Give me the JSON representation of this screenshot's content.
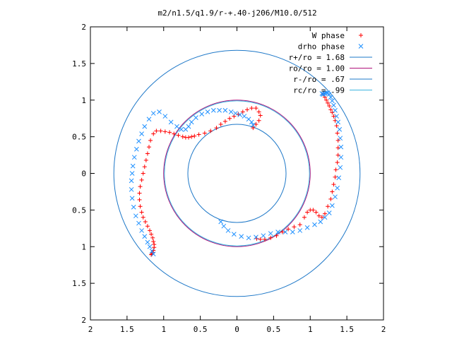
{
  "chart_data": {
    "type": "scatter",
    "title": "m2/n1.5/q1.9/r-+.40-j206/M10.0/512",
    "xlim": [
      -2,
      2
    ],
    "ylim": [
      -2,
      2
    ],
    "xticks": [
      -2,
      -1.5,
      -1,
      -0.5,
      0,
      0.5,
      1,
      1.5,
      2
    ],
    "yticks": [
      -2,
      -1.5,
      -1,
      -0.5,
      0,
      0.5,
      1,
      1.5,
      2
    ],
    "xtick_labels": [
      "2",
      "1.5",
      "1",
      "0.5",
      "0",
      "0.5",
      "1",
      "1.5",
      "2"
    ],
    "ytick_labels": [
      "2",
      "1.5",
      "1",
      "0.5",
      "0",
      "0.5",
      "1",
      "1.5",
      "2"
    ],
    "grid": false,
    "legend_position": "top-right",
    "series": [
      {
        "name": "W phase",
        "kind": "points",
        "marker": "plus",
        "color": "#ff0000",
        "x": [
          0.22,
          0.26,
          0.3,
          0.32,
          0.3,
          0.26,
          0.2,
          0.14,
          0.08,
          0.02,
          -0.04,
          -0.1,
          -0.16,
          -0.22,
          -0.28,
          -0.36,
          -0.44,
          -0.52,
          -0.58,
          -0.62,
          -0.66,
          -0.7,
          -0.74,
          -0.8,
          -0.86,
          -0.92,
          -0.98,
          -1.04,
          -1.1,
          -1.14,
          -1.18,
          -1.2,
          -1.22,
          -1.24,
          -1.26,
          -1.28,
          -1.3,
          -1.32,
          -1.33,
          -1.33,
          -1.32,
          -1.3,
          -1.28,
          -1.25,
          -1.22,
          -1.19,
          -1.17,
          -1.15,
          -1.14,
          -1.13,
          -1.13,
          -1.14,
          -1.15,
          -1.16,
          -1.17,
          0.27,
          0.32,
          0.38,
          0.46,
          0.54,
          0.62,
          0.7,
          0.78,
          0.86,
          0.92,
          0.96,
          1.0,
          1.04,
          1.08,
          1.12,
          1.16,
          1.2,
          1.24,
          1.28,
          1.3,
          1.32,
          1.34,
          1.35,
          1.37,
          1.38,
          1.38,
          1.38,
          1.37,
          1.36,
          1.34,
          1.32,
          1.3,
          1.28,
          1.26,
          1.24,
          1.22,
          1.2,
          1.18
        ],
        "y": [
          0.62,
          0.67,
          0.72,
          0.79,
          0.84,
          0.89,
          0.89,
          0.87,
          0.84,
          0.81,
          0.78,
          0.75,
          0.71,
          0.67,
          0.62,
          0.58,
          0.55,
          0.53,
          0.51,
          0.5,
          0.49,
          0.49,
          0.5,
          0.52,
          0.54,
          0.56,
          0.57,
          0.58,
          0.58,
          0.54,
          0.45,
          0.36,
          0.27,
          0.18,
          0.09,
          0.0,
          -0.09,
          -0.18,
          -0.27,
          -0.36,
          -0.45,
          -0.53,
          -0.6,
          -0.66,
          -0.72,
          -0.78,
          -0.83,
          -0.88,
          -0.93,
          -0.97,
          -1.01,
          -1.05,
          -1.08,
          -1.1,
          -1.11,
          -0.89,
          -0.9,
          -0.9,
          -0.88,
          -0.85,
          -0.8,
          -0.76,
          -0.73,
          -0.7,
          -0.6,
          -0.53,
          -0.5,
          -0.5,
          -0.53,
          -0.58,
          -0.6,
          -0.55,
          -0.45,
          -0.35,
          -0.25,
          -0.15,
          -0.05,
          0.05,
          0.15,
          0.25,
          0.35,
          0.45,
          0.55,
          0.65,
          0.72,
          0.78,
          0.83,
          0.87,
          0.92,
          0.96,
          1.0,
          1.04,
          1.08
        ]
      },
      {
        "name": "drho phase",
        "kind": "points",
        "marker": "cross",
        "color": "#1e90ff",
        "x": [
          0.22,
          0.2,
          0.16,
          0.1,
          0.04,
          -0.02,
          -0.08,
          -0.16,
          -0.24,
          -0.32,
          -0.4,
          -0.48,
          -0.56,
          -0.62,
          -0.66,
          -0.7,
          -0.76,
          -0.82,
          -0.9,
          -0.98,
          -1.06,
          -1.14,
          -1.2,
          -1.26,
          -1.3,
          -1.34,
          -1.37,
          -1.4,
          -1.42,
          -1.43,
          -1.44,
          -1.44,
          -1.43,
          -1.41,
          -1.38,
          -1.34,
          -1.3,
          -1.26,
          -1.22,
          -1.19,
          -1.16,
          -1.14,
          -0.22,
          -0.18,
          -0.12,
          -0.04,
          0.06,
          0.16,
          0.26,
          0.36,
          0.46,
          0.56,
          0.66,
          0.76,
          0.86,
          0.96,
          1.06,
          1.14,
          1.2,
          1.26,
          1.3,
          1.34,
          1.37,
          1.39,
          1.41,
          1.42,
          1.42,
          1.41,
          1.4,
          1.38,
          1.36,
          1.34,
          1.32,
          1.3,
          1.28,
          1.26,
          1.24,
          1.22,
          1.2,
          1.18,
          1.17,
          1.16
        ],
        "y": [
          0.66,
          0.7,
          0.74,
          0.78,
          0.8,
          0.82,
          0.84,
          0.86,
          0.86,
          0.86,
          0.84,
          0.81,
          0.76,
          0.7,
          0.64,
          0.6,
          0.6,
          0.64,
          0.7,
          0.78,
          0.84,
          0.82,
          0.74,
          0.64,
          0.54,
          0.44,
          0.33,
          0.22,
          0.1,
          0.0,
          -0.1,
          -0.22,
          -0.34,
          -0.46,
          -0.58,
          -0.68,
          -0.78,
          -0.86,
          -0.94,
          -1.0,
          -1.06,
          -1.1,
          -0.66,
          -0.72,
          -0.78,
          -0.83,
          -0.86,
          -0.88,
          -0.87,
          -0.85,
          -0.82,
          -0.8,
          -0.8,
          -0.8,
          -0.78,
          -0.74,
          -0.7,
          -0.66,
          -0.6,
          -0.54,
          -0.44,
          -0.32,
          -0.2,
          -0.06,
          0.08,
          0.22,
          0.36,
          0.48,
          0.6,
          0.7,
          0.78,
          0.86,
          0.93,
          0.99,
          1.04,
          1.08,
          1.1,
          1.1,
          1.09,
          1.08,
          1.08,
          1.09
        ]
      },
      {
        "name": "r+/ro = 1.68",
        "kind": "circle",
        "radius": 1.68,
        "color": "#1e78c8"
      },
      {
        "name": "ro/ro = 1.00",
        "kind": "circle",
        "radius": 1.0,
        "color": "#b0107a"
      },
      {
        "name": "r-/ro = .67",
        "kind": "circle",
        "radius": 0.67,
        "color": "#1e78c8"
      },
      {
        "name": "rc/ro = .99",
        "kind": "circle",
        "radius": 0.99,
        "color": "#3cb4e0"
      }
    ]
  }
}
